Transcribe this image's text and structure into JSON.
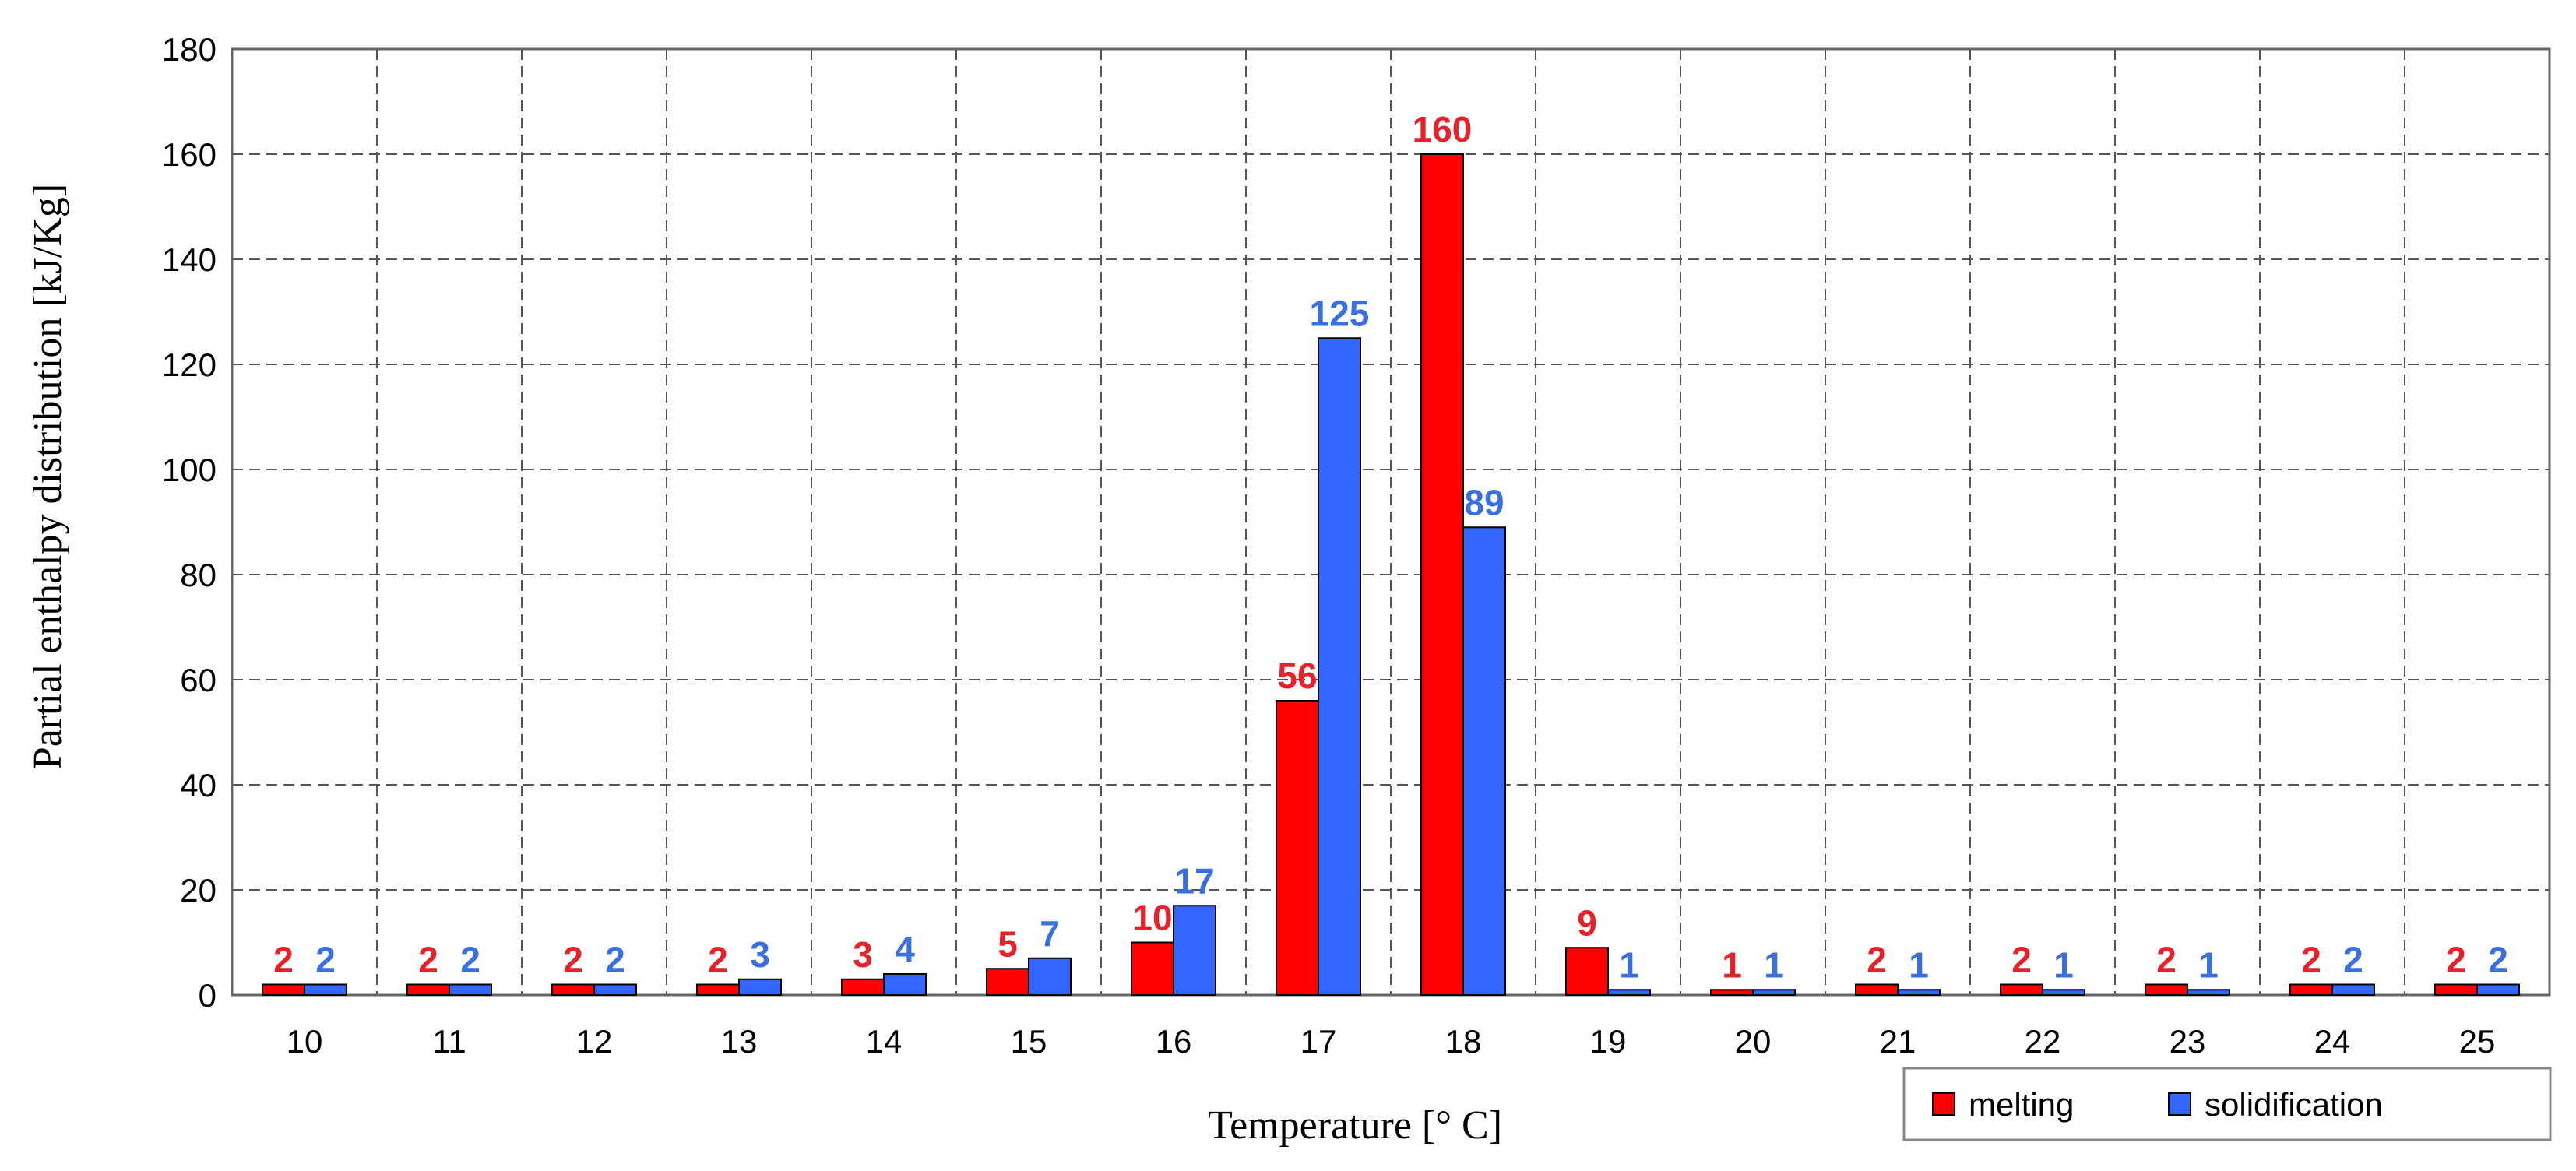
{
  "chart_data": {
    "type": "bar",
    "categories": [
      "10",
      "11",
      "12",
      "13",
      "14",
      "15",
      "16",
      "17",
      "18",
      "19",
      "20",
      "21",
      "22",
      "23",
      "24",
      "25"
    ],
    "series": [
      {
        "name": "melting",
        "color": "#ff0000",
        "values": [
          2,
          2,
          2,
          2,
          3,
          5,
          10,
          56,
          160,
          9,
          1,
          2,
          2,
          2,
          2,
          2
        ]
      },
      {
        "name": "solidification",
        "color": "#3366ff",
        "values": [
          2,
          2,
          2,
          3,
          4,
          7,
          17,
          125,
          89,
          1,
          1,
          1,
          1,
          1,
          2,
          2
        ]
      }
    ],
    "title": "",
    "xlabel": "Temperature [° C]",
    "ylabel": "Partial enthalpy distribution [kJ/Kg]",
    "ylim": [
      0,
      180
    ],
    "yticks": [
      0,
      20,
      40,
      60,
      80,
      100,
      120,
      140,
      160,
      180
    ],
    "grid": true,
    "legend_position": "bottom-right",
    "label_colors": {
      "melting": "#e8202a",
      "solidification": "#3a6fe0"
    }
  }
}
